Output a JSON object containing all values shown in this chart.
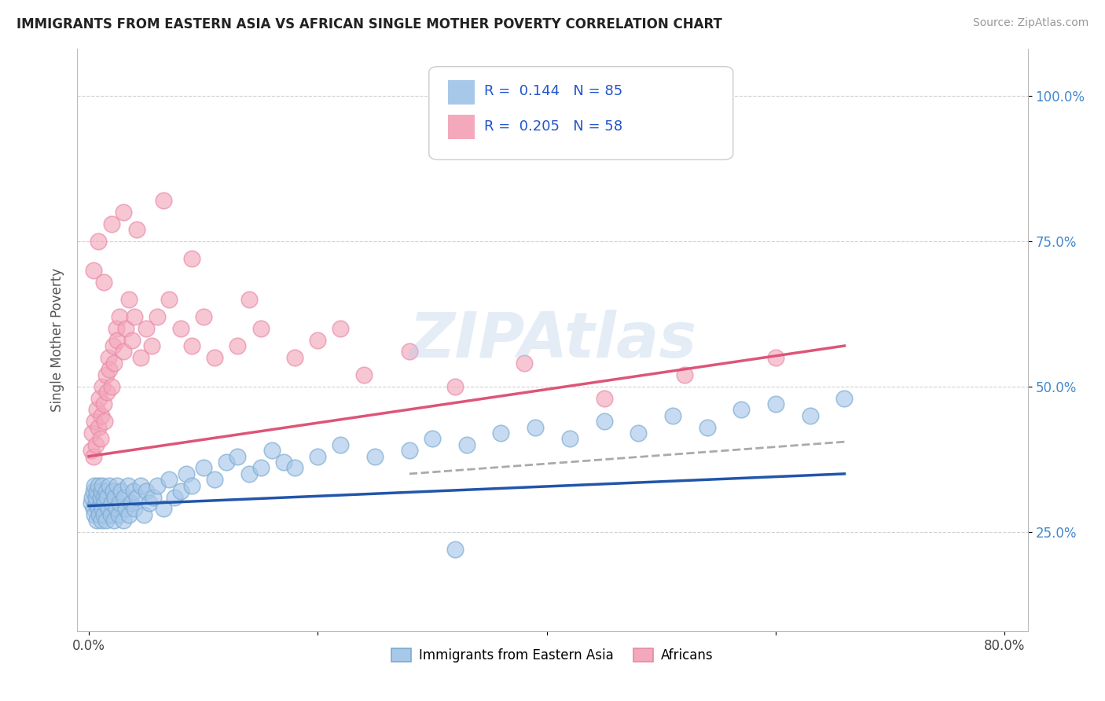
{
  "title": "IMMIGRANTS FROM EASTERN ASIA VS AFRICAN SINGLE MOTHER POVERTY CORRELATION CHART",
  "source": "Source: ZipAtlas.com",
  "ylabel": "Single Mother Poverty",
  "x_tick_labels": [
    "0.0%",
    "",
    "",
    "",
    "80.0%"
  ],
  "x_tick_values": [
    0.0,
    20.0,
    40.0,
    60.0,
    80.0
  ],
  "y_tick_labels": [
    "25.0%",
    "50.0%",
    "75.0%",
    "100.0%"
  ],
  "y_tick_values": [
    25.0,
    50.0,
    75.0,
    100.0
  ],
  "xlim": [
    -1.0,
    82.0
  ],
  "ylim": [
    8.0,
    108.0
  ],
  "legend_blue_label": "Immigrants from Eastern Asia",
  "legend_pink_label": "Africans",
  "R_blue": "0.144",
  "N_blue": "85",
  "R_pink": "0.205",
  "N_pink": "58",
  "blue_color": "#a8c8ea",
  "pink_color": "#f4a8bc",
  "blue_edge_color": "#7aaad0",
  "pink_edge_color": "#e888a8",
  "blue_line_color": "#2255aa",
  "pink_line_color": "#dd5577",
  "dash_color": "#aaaaaa",
  "watermark": "ZIPAtlas",
  "background_color": "#ffffff",
  "grid_color": "#cccccc",
  "title_color": "#222222",
  "blue_scatter_x": [
    0.2,
    0.3,
    0.4,
    0.4,
    0.5,
    0.5,
    0.6,
    0.6,
    0.7,
    0.7,
    0.8,
    0.8,
    0.9,
    1.0,
    1.0,
    1.1,
    1.1,
    1.2,
    1.2,
    1.3,
    1.3,
    1.4,
    1.5,
    1.5,
    1.6,
    1.7,
    1.8,
    1.9,
    2.0,
    2.1,
    2.2,
    2.3,
    2.4,
    2.5,
    2.6,
    2.7,
    2.8,
    3.0,
    3.1,
    3.2,
    3.4,
    3.5,
    3.7,
    3.9,
    4.0,
    4.2,
    4.5,
    4.8,
    5.0,
    5.3,
    5.6,
    6.0,
    6.5,
    7.0,
    7.5,
    8.0,
    8.5,
    9.0,
    10.0,
    11.0,
    12.0,
    13.0,
    14.0,
    15.0,
    16.0,
    17.0,
    18.0,
    20.0,
    22.0,
    25.0,
    28.0,
    30.0,
    33.0,
    36.0,
    39.0,
    42.0,
    45.0,
    48.0,
    51.0,
    54.0,
    57.0,
    60.0,
    63.0,
    66.0,
    32.0
  ],
  "blue_scatter_y": [
    30.0,
    31.0,
    29.0,
    32.0,
    28.0,
    33.0,
    30.0,
    31.0,
    27.0,
    32.0,
    29.0,
    33.0,
    28.0,
    30.0,
    31.0,
    27.0,
    32.0,
    29.0,
    33.0,
    28.0,
    31.0,
    30.0,
    32.0,
    27.0,
    31.0,
    29.0,
    33.0,
    28.0,
    30.0,
    32.0,
    27.0,
    31.0,
    29.0,
    33.0,
    28.0,
    30.0,
    32.0,
    27.0,
    31.0,
    29.0,
    33.0,
    28.0,
    30.0,
    32.0,
    29.0,
    31.0,
    33.0,
    28.0,
    32.0,
    30.0,
    31.0,
    33.0,
    29.0,
    34.0,
    31.0,
    32.0,
    35.0,
    33.0,
    36.0,
    34.0,
    37.0,
    38.0,
    35.0,
    36.0,
    39.0,
    37.0,
    36.0,
    38.0,
    40.0,
    38.0,
    39.0,
    41.0,
    40.0,
    42.0,
    43.0,
    41.0,
    44.0,
    42.0,
    45.0,
    43.0,
    46.0,
    47.0,
    45.0,
    48.0,
    22.0
  ],
  "pink_scatter_x": [
    0.2,
    0.3,
    0.4,
    0.5,
    0.6,
    0.7,
    0.8,
    0.9,
    1.0,
    1.1,
    1.2,
    1.3,
    1.4,
    1.5,
    1.6,
    1.7,
    1.8,
    2.0,
    2.1,
    2.2,
    2.4,
    2.5,
    2.7,
    3.0,
    3.2,
    3.5,
    3.8,
    4.0,
    4.5,
    5.0,
    5.5,
    6.0,
    7.0,
    8.0,
    9.0,
    10.0,
    11.0,
    13.0,
    15.0,
    18.0,
    20.0,
    24.0,
    28.0,
    32.0,
    38.0,
    45.0,
    52.0,
    60.0,
    0.4,
    0.8,
    1.3,
    2.0,
    3.0,
    4.2,
    6.5,
    9.0,
    14.0,
    22.0
  ],
  "pink_scatter_y": [
    39.0,
    42.0,
    38.0,
    44.0,
    40.0,
    46.0,
    43.0,
    48.0,
    41.0,
    45.0,
    50.0,
    47.0,
    44.0,
    52.0,
    49.0,
    55.0,
    53.0,
    50.0,
    57.0,
    54.0,
    60.0,
    58.0,
    62.0,
    56.0,
    60.0,
    65.0,
    58.0,
    62.0,
    55.0,
    60.0,
    57.0,
    62.0,
    65.0,
    60.0,
    57.0,
    62.0,
    55.0,
    57.0,
    60.0,
    55.0,
    58.0,
    52.0,
    56.0,
    50.0,
    54.0,
    48.0,
    52.0,
    55.0,
    70.0,
    75.0,
    68.0,
    78.0,
    80.0,
    77.0,
    82.0,
    72.0,
    65.0,
    60.0
  ],
  "blue_trend_x": [
    0.0,
    66.0
  ],
  "blue_trend_y": [
    29.5,
    35.0
  ],
  "pink_trend_x": [
    0.0,
    66.0
  ],
  "pink_trend_y": [
    38.0,
    57.0
  ],
  "dashed_trend_x": [
    28.0,
    66.0
  ],
  "dashed_trend_y": [
    35.0,
    40.5
  ]
}
